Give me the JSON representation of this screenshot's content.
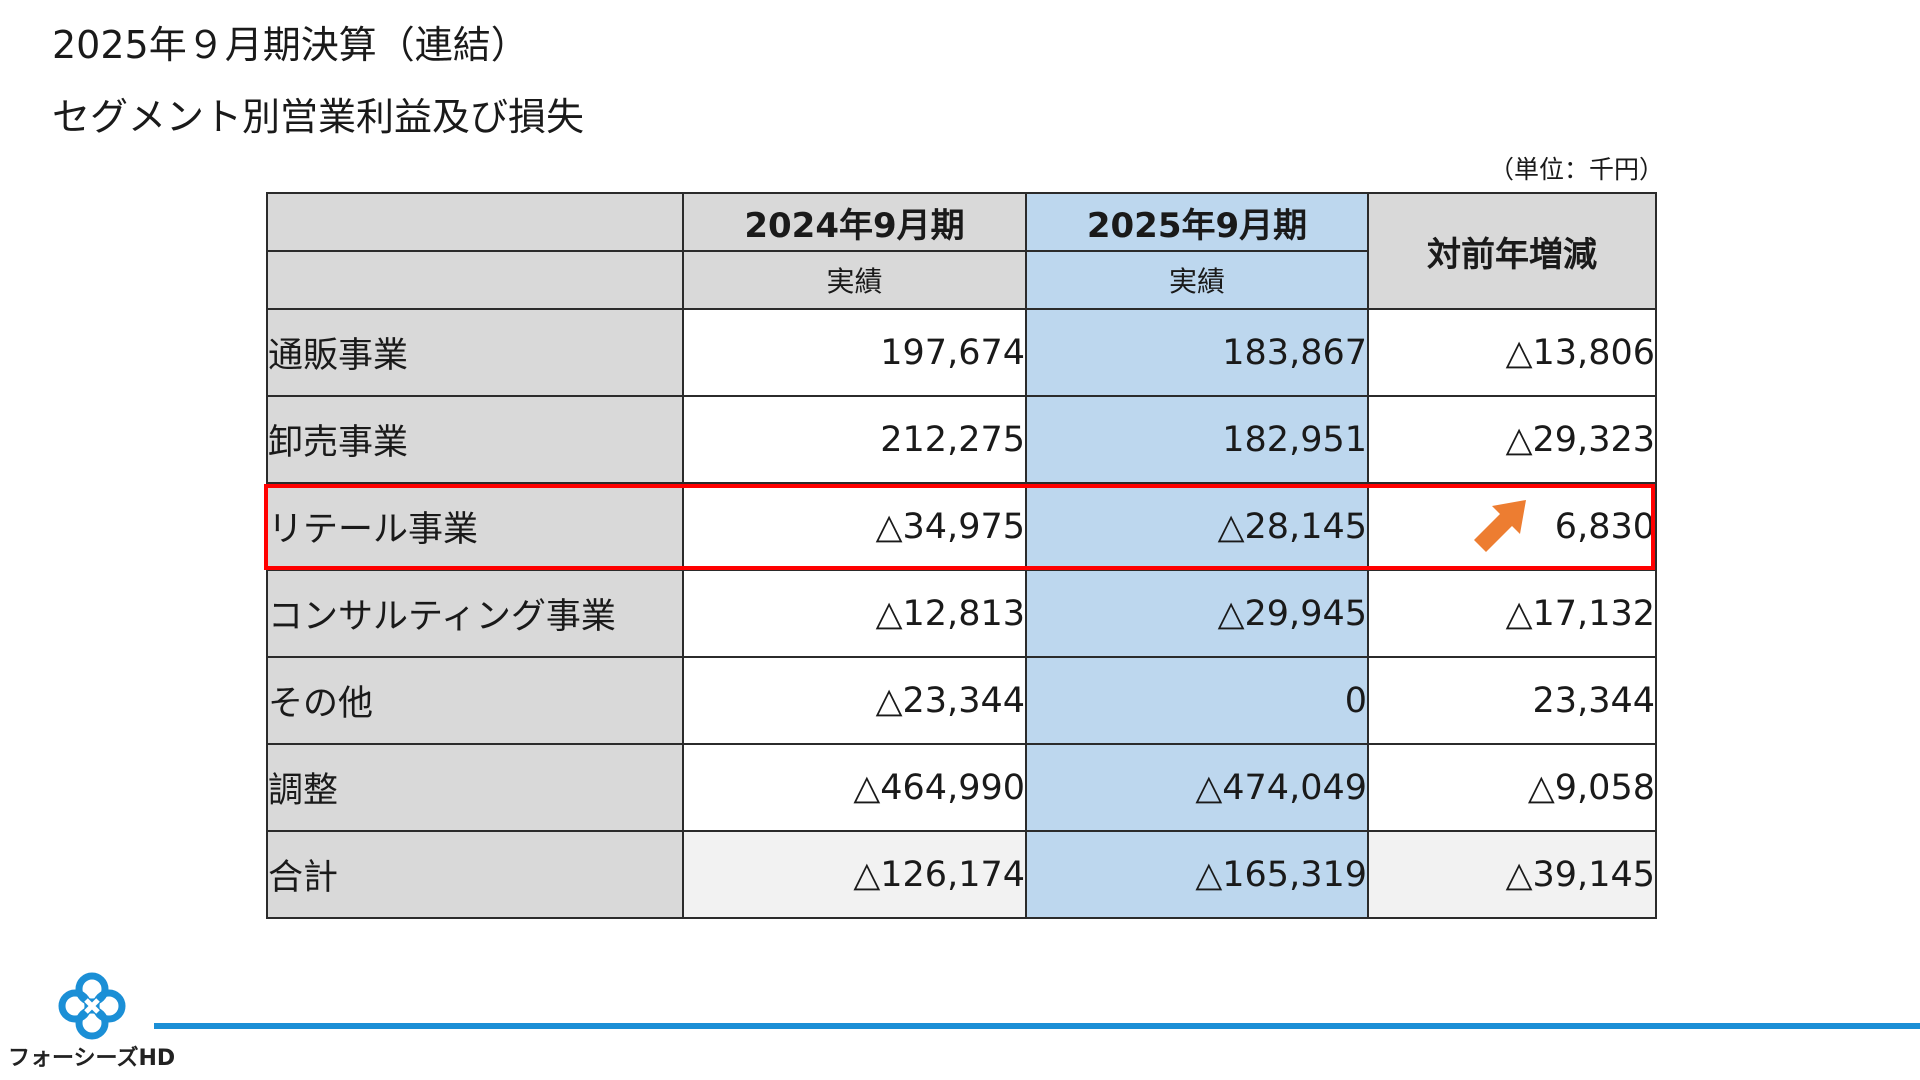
{
  "header": {
    "title_line1": "2025年９月期決算（連結）",
    "title_line2": "セグメント別営業利益及び損失",
    "unit": "（単位：千円）"
  },
  "table": {
    "col_prev": "2024年9月期",
    "col_curr": "2025年9月期",
    "col_change": "対前年増減",
    "sub_prev": "実績",
    "sub_curr": "実績",
    "rows": [
      {
        "label": "通販事業",
        "prev": "197,674",
        "curr": "183,867",
        "change": "△13,806"
      },
      {
        "label": "卸売事業",
        "prev": "212,275",
        "curr": "182,951",
        "change": "△29,323"
      },
      {
        "label": "リテール事業",
        "prev": "△34,975",
        "curr": "△28,145",
        "change": "6,830"
      },
      {
        "label": "コンサルティング事業",
        "prev": "△12,813",
        "curr": "△29,945",
        "change": "△17,132"
      },
      {
        "label": "その他",
        "prev": "△23,344",
        "curr": "0",
        "change": "23,344"
      },
      {
        "label": "調整",
        "prev": "△464,990",
        "curr": "△474,049",
        "change": "△9,058"
      },
      {
        "label": "合計",
        "prev": "△126,174",
        "curr": "△165,319",
        "change": "△39,145"
      }
    ]
  },
  "highlight": {
    "row": "リテール事業",
    "color": "#ff0000",
    "arrow_color": "#ed7d31",
    "arrow_icon": "arrow-up-right-icon"
  },
  "colors": {
    "header_grey": "#d9d9d9",
    "current_blue": "#bdd7ee",
    "footer_line": "#1b8fd6",
    "total_row": "#f2f2f2"
  },
  "footer": {
    "logo_text": "フォーシーズHD",
    "logo_icon": "clover-logo-icon"
  }
}
